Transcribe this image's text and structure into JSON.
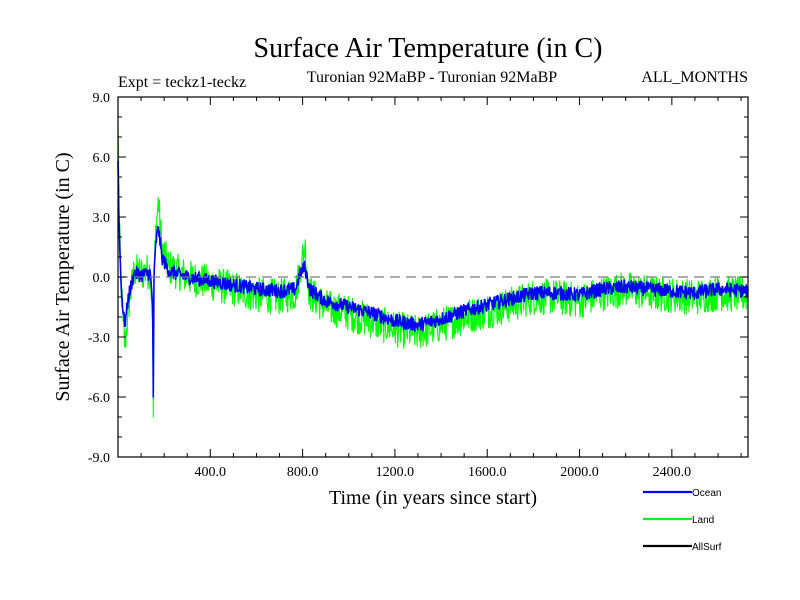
{
  "chart_data": {
    "type": "line",
    "title": "Surface Air Temperature (in C)",
    "subtitle_left": "Expt = teckz1-teckz",
    "subtitle_center": "Turonian  92MaBP - Turonian  92MaBP",
    "subtitle_right": "ALL_MONTHS",
    "xlabel": "Time (in years since start)",
    "ylabel": "Surface Air Temperature (in C)",
    "xlim": [
      0,
      2730
    ],
    "ylim": [
      -9.0,
      9.0
    ],
    "x_ticks": [
      400.0,
      800.0,
      1200.0,
      1600.0,
      2000.0,
      2400.0
    ],
    "x_tick_labels": [
      "400.0",
      "800.0",
      "1200.0",
      "1600.0",
      "2000.0",
      "2400.0"
    ],
    "y_ticks": [
      -9.0,
      -6.0,
      -3.0,
      0.0,
      3.0,
      6.0,
      9.0
    ],
    "y_tick_labels": [
      "-9.0",
      "-6.0",
      "-3.0",
      "0.0",
      "3.0",
      "6.0",
      "9.0"
    ],
    "zero_line": 0.0,
    "series": [
      {
        "name": "Land",
        "color": "#00ff00",
        "points": [
          [
            0,
            7.8
          ],
          [
            5,
            3.0
          ],
          [
            12,
            0.0
          ],
          [
            22,
            -2.2
          ],
          [
            30,
            -3.5
          ],
          [
            45,
            -1.5
          ],
          [
            70,
            0.3
          ],
          [
            100,
            0.2
          ],
          [
            140,
            0.3
          ],
          [
            150,
            -2.0
          ],
          [
            153,
            -7.0
          ],
          [
            156,
            0.0
          ],
          [
            165,
            2.5
          ],
          [
            175,
            3.8
          ],
          [
            190,
            1.5
          ],
          [
            220,
            0.5
          ],
          [
            300,
            0.0
          ],
          [
            400,
            -0.3
          ],
          [
            500,
            -0.6
          ],
          [
            600,
            -0.9
          ],
          [
            700,
            -1.0
          ],
          [
            770,
            -0.8
          ],
          [
            790,
            0.5
          ],
          [
            810,
            1.6
          ],
          [
            830,
            -0.8
          ],
          [
            900,
            -1.5
          ],
          [
            1000,
            -1.8
          ],
          [
            1100,
            -2.2
          ],
          [
            1200,
            -2.6
          ],
          [
            1300,
            -2.8
          ],
          [
            1400,
            -2.4
          ],
          [
            1500,
            -2.0
          ],
          [
            1600,
            -1.7
          ],
          [
            1700,
            -1.4
          ],
          [
            1800,
            -1.0
          ],
          [
            1900,
            -1.0
          ],
          [
            2000,
            -1.2
          ],
          [
            2100,
            -0.8
          ],
          [
            2200,
            -0.6
          ],
          [
            2300,
            -0.8
          ],
          [
            2400,
            -0.9
          ],
          [
            2500,
            -1.0
          ],
          [
            2600,
            -0.8
          ],
          [
            2730,
            -0.9
          ]
        ]
      },
      {
        "name": "Ocean",
        "color": "#0000ff",
        "points": [
          [
            0,
            5.8
          ],
          [
            5,
            2.5
          ],
          [
            12,
            0.0
          ],
          [
            22,
            -1.8
          ],
          [
            30,
            -2.4
          ],
          [
            45,
            -1.0
          ],
          [
            70,
            0.2
          ],
          [
            100,
            0.1
          ],
          [
            140,
            0.2
          ],
          [
            150,
            -1.5
          ],
          [
            153,
            -6.0
          ],
          [
            156,
            0.0
          ],
          [
            165,
            1.8
          ],
          [
            175,
            2.5
          ],
          [
            190,
            1.0
          ],
          [
            220,
            0.3
          ],
          [
            300,
            0.0
          ],
          [
            400,
            -0.2
          ],
          [
            500,
            -0.4
          ],
          [
            600,
            -0.6
          ],
          [
            700,
            -0.7
          ],
          [
            770,
            -0.6
          ],
          [
            790,
            0.2
          ],
          [
            810,
            0.5
          ],
          [
            830,
            -0.6
          ],
          [
            900,
            -1.2
          ],
          [
            1000,
            -1.5
          ],
          [
            1100,
            -1.8
          ],
          [
            1200,
            -2.2
          ],
          [
            1300,
            -2.4
          ],
          [
            1400,
            -2.1
          ],
          [
            1500,
            -1.7
          ],
          [
            1600,
            -1.4
          ],
          [
            1700,
            -1.1
          ],
          [
            1800,
            -0.8
          ],
          [
            1900,
            -0.8
          ],
          [
            2000,
            -0.9
          ],
          [
            2100,
            -0.6
          ],
          [
            2200,
            -0.5
          ],
          [
            2300,
            -0.6
          ],
          [
            2400,
            -0.7
          ],
          [
            2500,
            -0.8
          ],
          [
            2600,
            -0.6
          ],
          [
            2730,
            -0.7
          ]
        ]
      },
      {
        "name": "AllSurf",
        "color": "#000000",
        "points": []
      }
    ],
    "legend": {
      "placement": "bottom-right",
      "entries": [
        {
          "label": "Ocean",
          "color": "#0000ff"
        },
        {
          "label": "Land",
          "color": "#00ff00"
        },
        {
          "label": "AllSurf",
          "color": "#000000"
        }
      ]
    }
  }
}
